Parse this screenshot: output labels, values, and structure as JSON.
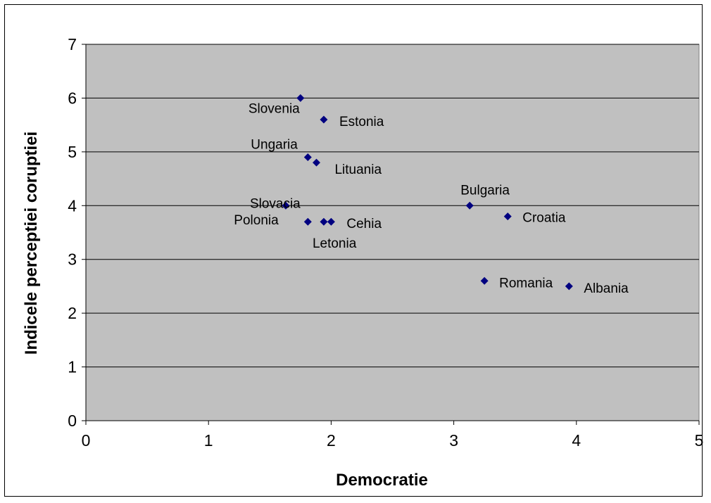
{
  "chart_data": {
    "type": "scatter",
    "title": "",
    "xlabel": "Democratie",
    "ylabel": "Indicele perceptiei coruptiei",
    "xlim": [
      0,
      5
    ],
    "ylim": [
      0,
      7
    ],
    "x_ticks": [
      "0",
      "1",
      "2",
      "3",
      "4",
      "5"
    ],
    "y_ticks": [
      "0",
      "1",
      "2",
      "3",
      "4",
      "5",
      "6",
      "7"
    ],
    "grid": "horizontal",
    "marker": "diamond",
    "marker_color": "#000080",
    "plot_background": "#c0c0c0",
    "points": [
      {
        "label": "Slovenia",
        "x": 1.75,
        "y": 6.0
      },
      {
        "label": "Estonia",
        "x": 1.94,
        "y": 5.6
      },
      {
        "label": "Ungaria",
        "x": 1.81,
        "y": 4.9
      },
      {
        "label": "Lituania",
        "x": 1.88,
        "y": 4.8
      },
      {
        "label": "Slovacia",
        "x": 1.63,
        "y": 4.0
      },
      {
        "label": "Polonia",
        "x": 1.81,
        "y": 3.7
      },
      {
        "label": "Letonia",
        "x": 1.94,
        "y": 3.7
      },
      {
        "label": "Cehia",
        "x": 2.0,
        "y": 3.7
      },
      {
        "label": "Bulgaria",
        "x": 3.13,
        "y": 4.0
      },
      {
        "label": "Croatia",
        "x": 3.44,
        "y": 3.8
      },
      {
        "label": "Romania",
        "x": 3.25,
        "y": 2.6
      },
      {
        "label": "Albania",
        "x": 3.94,
        "y": 2.5
      }
    ]
  }
}
